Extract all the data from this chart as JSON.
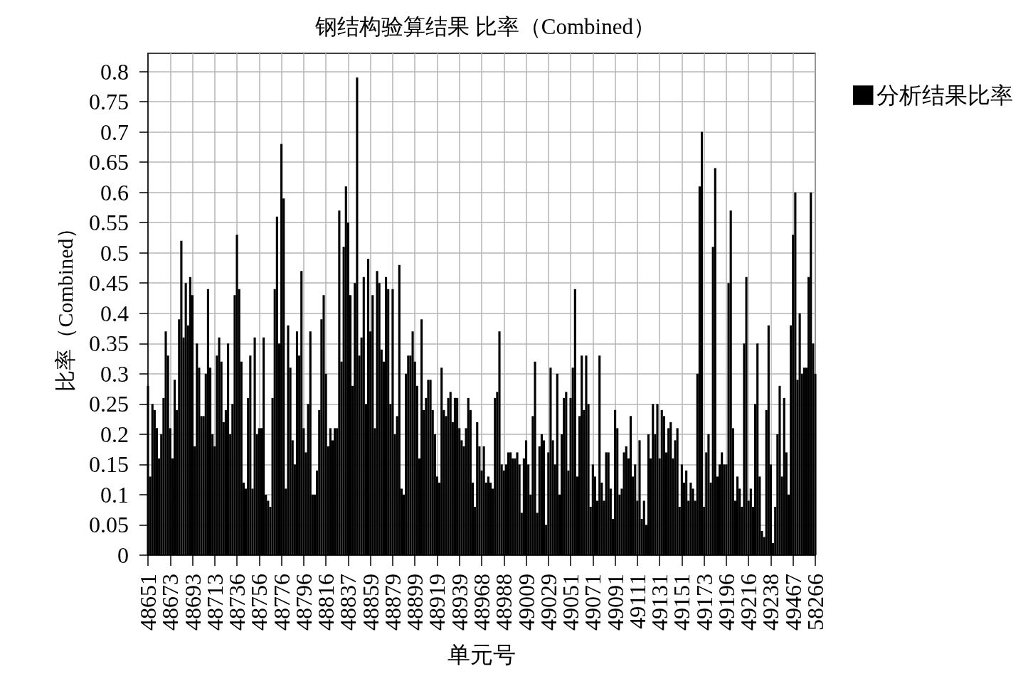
{
  "chart_data": {
    "type": "bar",
    "title": "钢结构验算结果 比率（Combined）",
    "xlabel": "单元号",
    "ylabel": "比率（Combined）",
    "categories": [
      "48651",
      null,
      null,
      null,
      null,
      null,
      null,
      null,
      null,
      null,
      "48673",
      null,
      null,
      null,
      null,
      null,
      null,
      null,
      null,
      null,
      "48693",
      null,
      null,
      null,
      null,
      null,
      null,
      null,
      null,
      null,
      "48713",
      null,
      null,
      null,
      null,
      null,
      null,
      null,
      null,
      null,
      "48736",
      null,
      null,
      null,
      null,
      null,
      null,
      null,
      null,
      null,
      "48756",
      null,
      null,
      null,
      null,
      null,
      null,
      null,
      null,
      null,
      "48776",
      null,
      null,
      null,
      null,
      null,
      null,
      null,
      null,
      null,
      "48796",
      null,
      null,
      null,
      null,
      null,
      null,
      null,
      null,
      null,
      "48816",
      null,
      null,
      null,
      null,
      null,
      null,
      null,
      null,
      null,
      "48837",
      null,
      null,
      null,
      null,
      null,
      null,
      null,
      null,
      null,
      "48859",
      null,
      null,
      null,
      null,
      null,
      null,
      null,
      null,
      null,
      "48879",
      null,
      null,
      null,
      null,
      null,
      null,
      null,
      null,
      null,
      "48899",
      null,
      null,
      null,
      null,
      null,
      null,
      null,
      null,
      null,
      "48919",
      null,
      null,
      null,
      null,
      null,
      null,
      null,
      null,
      null,
      "48939",
      null,
      null,
      null,
      null,
      null,
      null,
      null,
      null,
      null,
      "48968",
      null,
      null,
      null,
      null,
      null,
      null,
      null,
      null,
      null,
      "48988",
      null,
      null,
      null,
      null,
      null,
      null,
      null,
      null,
      null,
      "49009",
      null,
      null,
      null,
      null,
      null,
      null,
      null,
      null,
      null,
      "49029",
      null,
      null,
      null,
      null,
      null,
      null,
      null,
      null,
      null,
      "49051",
      null,
      null,
      null,
      null,
      null,
      null,
      null,
      null,
      null,
      "49071",
      null,
      null,
      null,
      null,
      null,
      null,
      null,
      null,
      null,
      "49091",
      null,
      null,
      null,
      null,
      null,
      null,
      null,
      null,
      null,
      "49111",
      null,
      null,
      null,
      null,
      null,
      null,
      null,
      null,
      null,
      "49131",
      null,
      null,
      null,
      null,
      null,
      null,
      null,
      null,
      null,
      "49151",
      null,
      null,
      null,
      null,
      null,
      null,
      null,
      null,
      null,
      "49173",
      null,
      null,
      null,
      null,
      null,
      null,
      null,
      null,
      null,
      "49196",
      null,
      null,
      null,
      null,
      null,
      null,
      null,
      null,
      null,
      "49216",
      null,
      null,
      null,
      null,
      null,
      null,
      null,
      null,
      null,
      "49238",
      null,
      null,
      null,
      null,
      null,
      null,
      null,
      null,
      null,
      "49467",
      null,
      null,
      null,
      null,
      null,
      null,
      null,
      null,
      null,
      "58266"
    ],
    "series": [
      {
        "name": "分析结果比率",
        "color": "#000000",
        "values": [
          0.28,
          0.13,
          0.25,
          0.24,
          0.21,
          0.16,
          0.2,
          0.26,
          0.37,
          0.33,
          0.21,
          0.16,
          0.29,
          0.24,
          0.39,
          0.52,
          0.36,
          0.45,
          0.38,
          0.46,
          0.43,
          0.18,
          0.35,
          0.31,
          0.23,
          0.23,
          0.3,
          0.44,
          0.31,
          0.2,
          0.18,
          0.33,
          0.36,
          0.32,
          0.22,
          0.24,
          0.35,
          0.2,
          0.25,
          0.43,
          0.53,
          0.44,
          0.32,
          0.12,
          0.11,
          0.26,
          0.33,
          0.11,
          0.36,
          0.2,
          0.21,
          0.21,
          0.36,
          0.1,
          0.09,
          0.08,
          0.26,
          0.44,
          0.56,
          0.35,
          0.68,
          0.59,
          0.11,
          0.38,
          0.31,
          0.19,
          0.15,
          0.37,
          0.33,
          0.47,
          0.21,
          0.17,
          0.25,
          0.37,
          0.1,
          0.1,
          0.14,
          0.24,
          0.39,
          0.43,
          0.3,
          0.18,
          0.21,
          0.19,
          0.21,
          0.21,
          0.57,
          0.32,
          0.51,
          0.61,
          0.55,
          0.43,
          0.28,
          0.45,
          0.79,
          0.33,
          0.36,
          0.46,
          0.25,
          0.49,
          0.37,
          0.43,
          0.21,
          0.47,
          0.45,
          0.34,
          0.32,
          0.46,
          0.44,
          0.25,
          0.44,
          0.2,
          0.23,
          0.48,
          0.11,
          0.1,
          0.3,
          0.33,
          0.33,
          0.37,
          0.32,
          0.28,
          0.16,
          0.39,
          0.24,
          0.26,
          0.29,
          0.29,
          0.24,
          0.2,
          0.13,
          0.12,
          0.31,
          0.24,
          0.23,
          0.26,
          0.27,
          0.22,
          0.26,
          0.26,
          0.21,
          0.19,
          0.18,
          0.21,
          0.26,
          0.24,
          0.12,
          0.08,
          0.22,
          0.18,
          0.14,
          0.18,
          0.12,
          0.13,
          0.12,
          0.11,
          0.26,
          0.27,
          0.37,
          0.15,
          0.14,
          0.15,
          0.17,
          0.17,
          0.16,
          0.16,
          0.17,
          0.15,
          0.07,
          0.16,
          0.19,
          0.15,
          0.1,
          0.23,
          0.32,
          0.07,
          0.18,
          0.2,
          0.19,
          0.05,
          0.17,
          0.31,
          0.19,
          0.15,
          0.3,
          0.1,
          0.2,
          0.26,
          0.27,
          0.14,
          0.26,
          0.31,
          0.44,
          0.13,
          0.23,
          0.33,
          0.24,
          0.33,
          0.25,
          0.08,
          0.15,
          0.13,
          0.09,
          0.33,
          0.12,
          0.09,
          0.17,
          0.17,
          0.11,
          0.06,
          0.24,
          0.21,
          0.1,
          0.11,
          0.17,
          0.18,
          0.16,
          0.23,
          0.13,
          0.15,
          0.09,
          0.19,
          0.06,
          0.09,
          0.05,
          0.2,
          0.16,
          0.25,
          0.2,
          0.25,
          0.16,
          0.24,
          0.23,
          0.17,
          0.21,
          0.22,
          0.16,
          0.19,
          0.21,
          0.08,
          0.15,
          0.12,
          0.14,
          0.09,
          0.12,
          0.11,
          0.09,
          0.3,
          0.61,
          0.7,
          0.08,
          0.17,
          0.2,
          0.12,
          0.51,
          0.64,
          0.13,
          0.15,
          0.17,
          0.15,
          0.15,
          0.45,
          0.57,
          0.21,
          0.09,
          0.13,
          0.11,
          0.08,
          0.35,
          0.46,
          0.09,
          0.11,
          0.08,
          0.25,
          0.35,
          0.13,
          0.04,
          0.03,
          0.24,
          0.38,
          0.15,
          0.02,
          0.08,
          0.2,
          0.28,
          0.13,
          0.26,
          0.17,
          0.1,
          0.38,
          0.53,
          0.6,
          0.29,
          0.4,
          0.3,
          0.31,
          0.31,
          0.46,
          0.6,
          0.35,
          0.3
        ]
      }
    ],
    "ylim": [
      0,
      0.83
    ],
    "yticks": [
      0,
      0.05,
      0.1,
      0.15,
      0.2,
      0.25,
      0.3,
      0.35,
      0.4,
      0.45,
      0.5,
      0.55,
      0.6,
      0.65,
      0.7,
      0.75,
      0.8
    ],
    "grid": true,
    "legend": "top right"
  }
}
